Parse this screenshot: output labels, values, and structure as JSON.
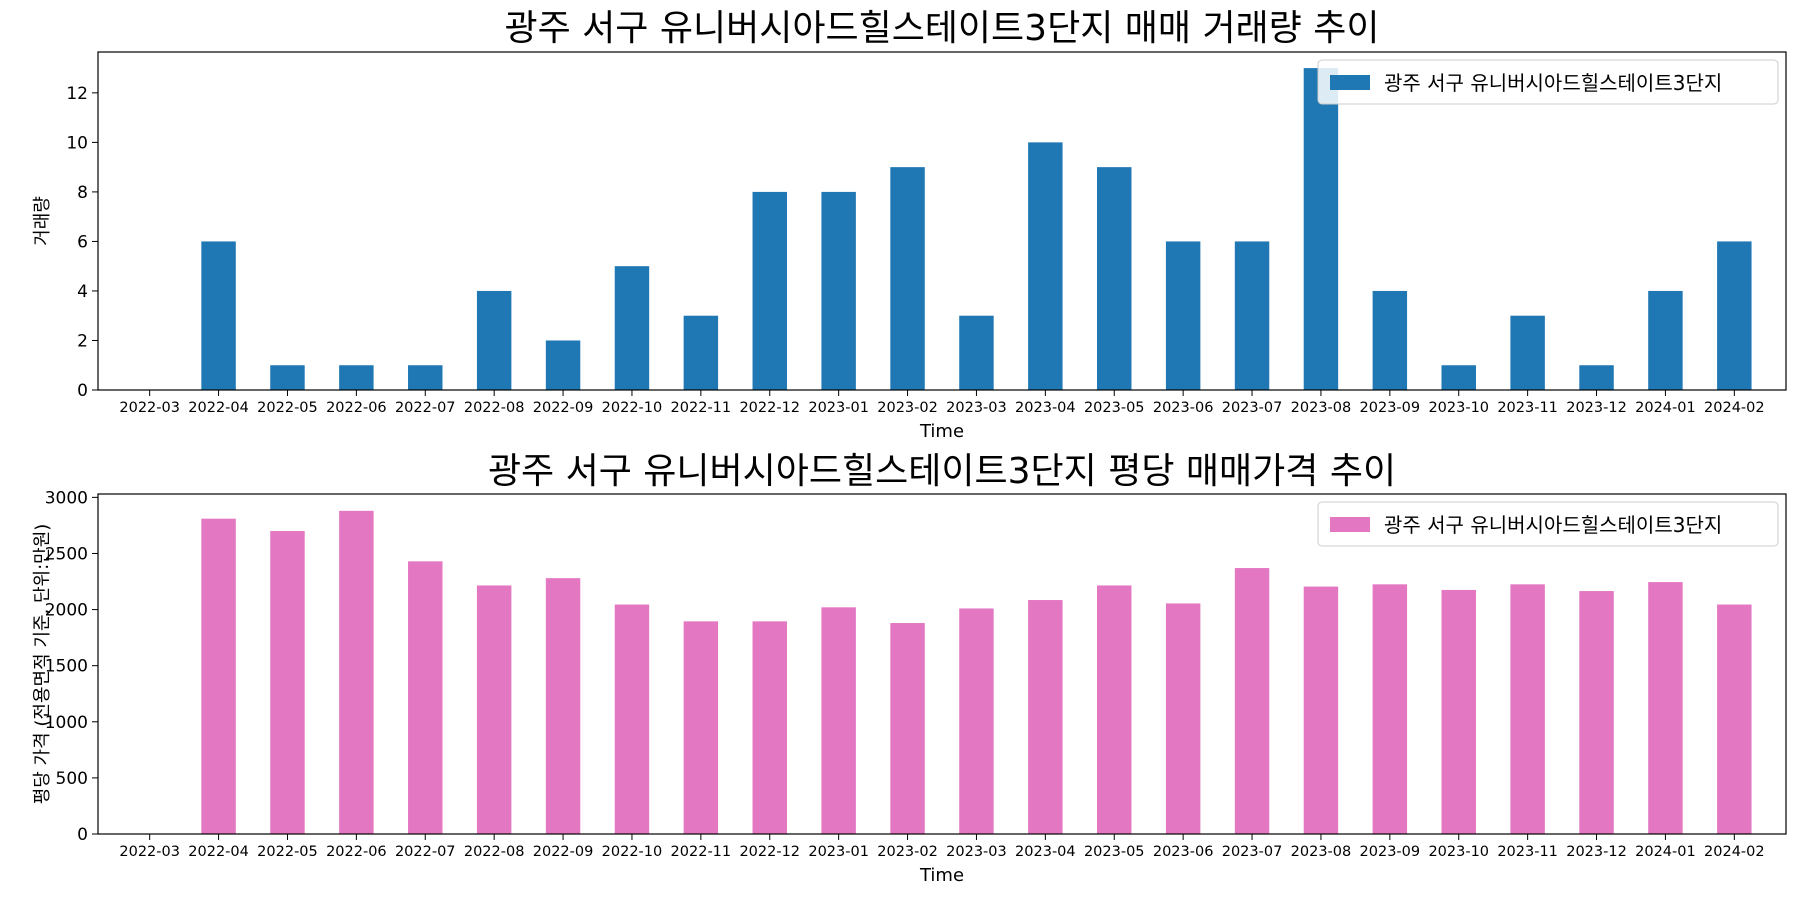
{
  "chart_data": [
    {
      "type": "bar",
      "title": "광주 서구 유니버시아드힐스테이트3단지 매매 거래량 추이",
      "xlabel": "Time",
      "ylabel": "거래량",
      "color": "#1f77b4",
      "legend_position": "top-right",
      "grid": false,
      "categories": [
        "2022-03",
        "2022-04",
        "2022-05",
        "2022-06",
        "2022-07",
        "2022-08",
        "2022-09",
        "2022-10",
        "2022-11",
        "2022-12",
        "2023-01",
        "2023-02",
        "2023-03",
        "2023-04",
        "2023-05",
        "2023-06",
        "2023-07",
        "2023-08",
        "2023-09",
        "2023-10",
        "2023-11",
        "2023-12",
        "2024-01",
        "2024-02"
      ],
      "series": [
        {
          "name": "광주 서구 유니버시아드힐스테이트3단지",
          "values": [
            0,
            6,
            1,
            1,
            1,
            4,
            2,
            5,
            3,
            8,
            8,
            9,
            3,
            10,
            9,
            6,
            6,
            13,
            4,
            1,
            3,
            1,
            4,
            6
          ]
        }
      ],
      "ylim": [
        0,
        13.65
      ],
      "yticks": [
        0,
        2,
        4,
        6,
        8,
        10,
        12
      ]
    },
    {
      "type": "bar",
      "title": "광주 서구 유니버시아드힐스테이트3단지 평당 매매가격 추이",
      "xlabel": "Time",
      "ylabel": "평당 가격 (전용면적 기준, 단위:만원)",
      "color": "#e377c2",
      "legend_position": "top-right",
      "grid": false,
      "categories": [
        "2022-03",
        "2022-04",
        "2022-05",
        "2022-06",
        "2022-07",
        "2022-08",
        "2022-09",
        "2022-10",
        "2022-11",
        "2022-12",
        "2023-01",
        "2023-02",
        "2023-03",
        "2023-04",
        "2023-05",
        "2023-06",
        "2023-07",
        "2023-08",
        "2023-09",
        "2023-10",
        "2023-11",
        "2023-12",
        "2024-01",
        "2024-02"
      ],
      "series": [
        {
          "name": "광주 서구 유니버시아드힐스테이트3단지",
          "values": [
            0,
            2810,
            2700,
            2880,
            2430,
            2215,
            2280,
            2045,
            1895,
            1895,
            2020,
            1880,
            2010,
            2085,
            2215,
            2055,
            2370,
            2205,
            2225,
            2175,
            2225,
            2165,
            2245,
            2045
          ]
        }
      ],
      "ylim": [
        0,
        3030
      ],
      "yticks": [
        0,
        500,
        1000,
        1500,
        2000,
        2500,
        3000
      ]
    }
  ]
}
